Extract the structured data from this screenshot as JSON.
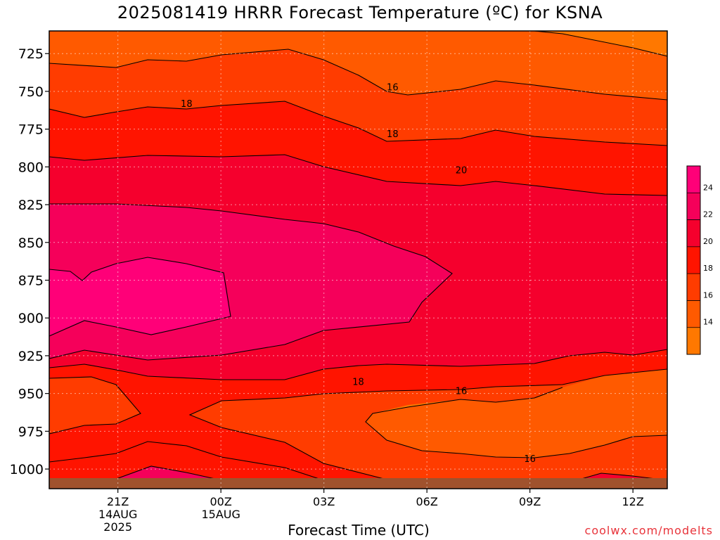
{
  "chart_data": {
    "type": "contour",
    "title": "2025081419 HRRR Forecast Temperature (ºC) for KSNA",
    "xlabel": "Forecast Time (UTC)",
    "ylabel": "",
    "y_axis_inverted": true,
    "ylim": [
      1013,
      710
    ],
    "xlim": [
      "2025-08-14 19Z",
      "2025-08-15 13Z"
    ],
    "y_ticks": [
      725,
      750,
      775,
      800,
      825,
      850,
      875,
      900,
      925,
      950,
      975,
      1000
    ],
    "x_ticks": [
      {
        "x": "2025-08-14 21Z",
        "label": "21Z",
        "sub1": "14AUG",
        "sub2": "2025"
      },
      {
        "x": "2025-08-15 00Z",
        "label": "00Z",
        "sub1": "15AUG",
        "sub2": ""
      },
      {
        "x": "2025-08-15 03Z",
        "label": "03Z",
        "sub1": "",
        "sub2": ""
      },
      {
        "x": "2025-08-15 06Z",
        "label": "06Z",
        "sub1": "",
        "sub2": ""
      },
      {
        "x": "2025-08-15 09Z",
        "label": "09Z",
        "sub1": "",
        "sub2": ""
      },
      {
        "x": "2025-08-15 12Z",
        "label": "12Z",
        "sub1": "",
        "sub2": ""
      }
    ],
    "grid": true,
    "legend": "colorbar-right",
    "colorbar": {
      "levels": [
        12,
        14,
        16,
        18,
        20,
        22,
        24,
        26
      ],
      "labels": [
        "14",
        "16",
        "18",
        "20",
        "22",
        "24"
      ],
      "colors": [
        "#ff7800",
        "#ff5a00",
        "#ff3c00",
        "#ff1400",
        "#f5002d",
        "#f5005a",
        "#ff0078"
      ]
    },
    "contour_labels": [
      {
        "text": "16",
        "x": "2025-08-15 05Z",
        "p": 747
      },
      {
        "text": "18",
        "x": "2025-08-14 23Z",
        "p": 758
      },
      {
        "text": "18",
        "x": "2025-08-15 05Z",
        "p": 778
      },
      {
        "text": "20",
        "x": "2025-08-15 07Z",
        "p": 802
      },
      {
        "text": "18",
        "x": "2025-08-15 04Z",
        "p": 942
      },
      {
        "text": "16",
        "x": "2025-08-15 07Z",
        "p": 948
      },
      {
        "text": "16",
        "x": "2025-08-15 09Z",
        "p": 993
      }
    ],
    "ground": {
      "color": "#a0522d",
      "below_p": 1006
    }
  },
  "credit": "coolwx.com/modelts"
}
